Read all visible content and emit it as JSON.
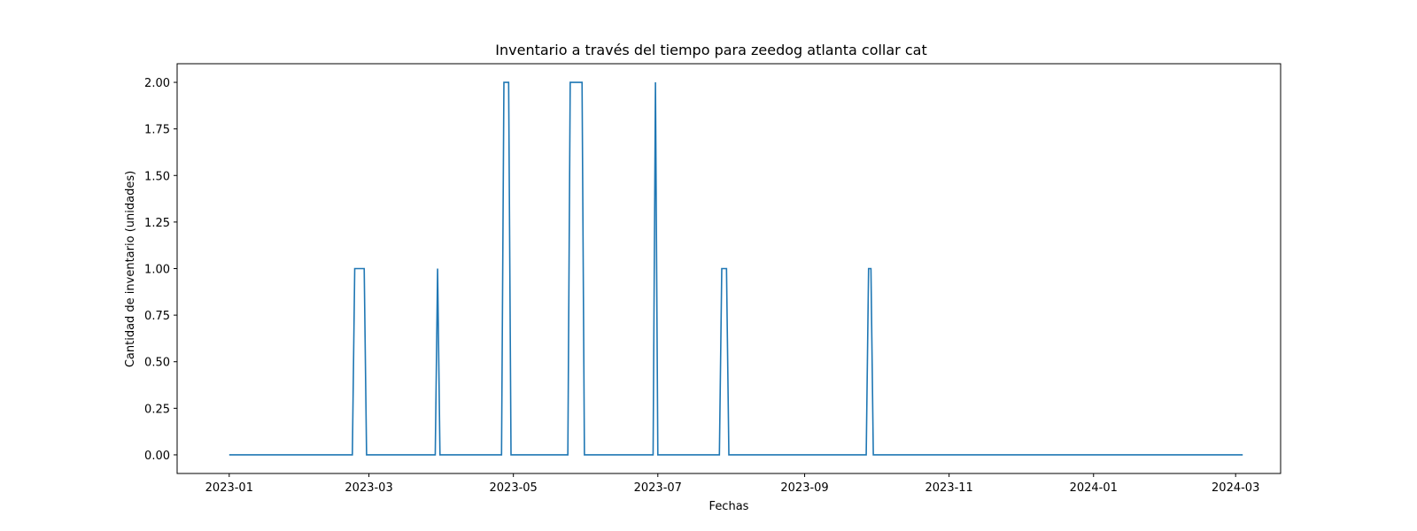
{
  "chart_data": {
    "type": "line",
    "title": "Inventario a través del tiempo para zeedog atlanta collar cat",
    "xlabel": "Fechas",
    "ylabel": "Cantidad de inventario (unidades)",
    "xlim": [
      "2022-12-10",
      "2024-03-20"
    ],
    "ylim": [
      -0.1,
      2.1
    ],
    "x_ticks": [
      "2023-01-01",
      "2023-03-01",
      "2023-05-01",
      "2023-07-01",
      "2023-09-01",
      "2023-11-01",
      "2024-01-01",
      "2024-03-01"
    ],
    "x_tick_labels": [
      "2023-01",
      "2023-03",
      "2023-05",
      "2023-07",
      "2023-09",
      "2023-11",
      "2024-01",
      "2024-03"
    ],
    "y_ticks": [
      0,
      0.25,
      0.5,
      0.75,
      1.0,
      1.25,
      1.5,
      1.75,
      2.0
    ],
    "y_tick_labels": [
      "0.00",
      "0.25",
      "0.50",
      "0.75",
      "1.00",
      "1.25",
      "1.50",
      "1.75",
      "2.00"
    ],
    "grid": false,
    "color": "#1f77b4",
    "series": [
      {
        "x": [
          "2023-01-01",
          "2023-02-22",
          "2023-02-23",
          "2023-02-27",
          "2023-02-28",
          "2023-03-29",
          "2023-03-30",
          "2023-03-31",
          "2023-04-26",
          "2023-04-27",
          "2023-04-29",
          "2023-04-30",
          "2023-05-24",
          "2023-05-25",
          "2023-05-30",
          "2023-05-31",
          "2023-06-29",
          "2023-06-30",
          "2023-07-01",
          "2023-07-27",
          "2023-07-28",
          "2023-07-30",
          "2023-07-31",
          "2023-09-27",
          "2023-09-28",
          "2023-09-29",
          "2023-09-30",
          "2024-03-04"
        ],
        "y": [
          0,
          0,
          1,
          1,
          0,
          0,
          1,
          0,
          0,
          2,
          2,
          0,
          0,
          2,
          2,
          0,
          0,
          2,
          0,
          0,
          1,
          1,
          0,
          0,
          1,
          1,
          0,
          0
        ]
      }
    ]
  }
}
